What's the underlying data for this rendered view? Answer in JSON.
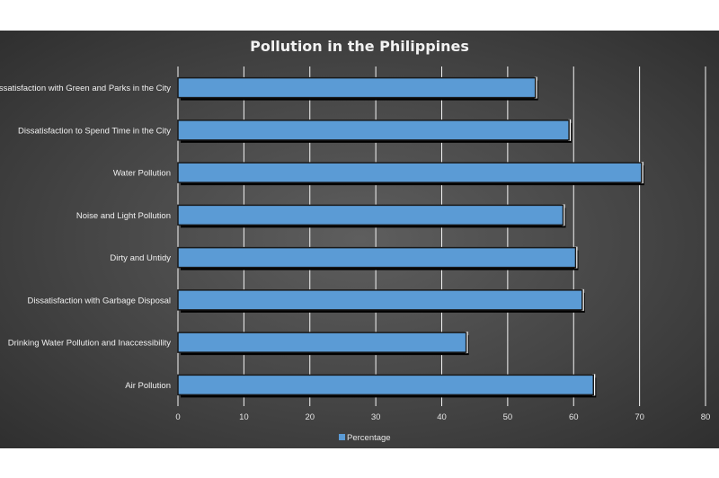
{
  "chart_data": {
    "type": "bar",
    "orientation": "horizontal",
    "title": "Pollution in the Philippines",
    "categories": [
      "Dissatisfaction with Green and Parks in the City",
      "Dissatisfaction to Spend Time in the City",
      "Water Pollution",
      "Noise and Light Pollution",
      "Dirty and Untidy",
      "Dissatisfaction with Garbage Disposal",
      "Drinking Water Pollution and Inaccessibility",
      "Air Pollution"
    ],
    "series": [
      {
        "name": "Percentage",
        "values": [
          54.2,
          59.3,
          70.3,
          58.4,
          60.3,
          61.3,
          43.7,
          63.0
        ],
        "color": "#5b9bd5"
      }
    ],
    "xlim": [
      0,
      80
    ],
    "xticks": [
      0,
      10,
      20,
      30,
      40,
      50,
      60,
      70,
      80
    ],
    "grid": true,
    "legend_position": "bottom"
  }
}
